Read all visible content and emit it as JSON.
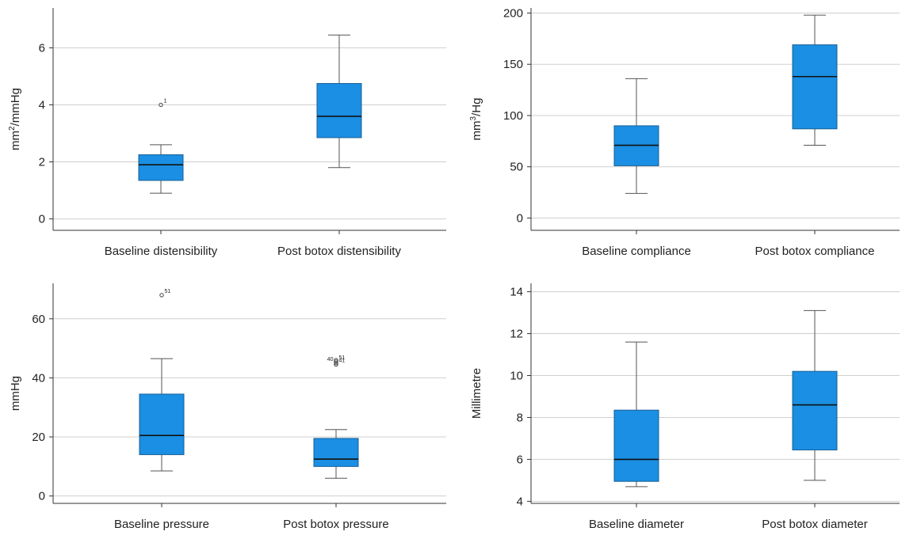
{
  "chart_data": [
    {
      "type": "box",
      "ylabel": "mm²/mmHg",
      "ylabel_main": "mm",
      "ylabel_sup": "2",
      "ylabel_tail": "/mmHg",
      "ylim": [
        -0.4,
        7.4
      ],
      "yticks": [
        0,
        2,
        4,
        6
      ],
      "ytick_labels": [
        "0",
        "2",
        "4",
        "6"
      ],
      "grid": true,
      "categories": [
        "Baseline distensibility",
        "Post botox distensibility"
      ],
      "boxes": [
        {
          "name": "Baseline distensibility",
          "min": 0.9,
          "q1": 1.35,
          "median": 1.9,
          "q3": 2.25,
          "max": 2.6,
          "outliers": [
            {
              "value": 4.0,
              "label": "1"
            }
          ]
        },
        {
          "name": "Post botox distensibility",
          "min": 1.8,
          "q1": 2.85,
          "median": 3.6,
          "q3": 4.75,
          "max": 6.45,
          "outliers": []
        }
      ]
    },
    {
      "type": "box",
      "ylabel": "mm³/Hg",
      "ylabel_main": "mm",
      "ylabel_sup": "3",
      "ylabel_tail": "/Hg",
      "ylim": [
        -12,
        205
      ],
      "yticks": [
        0,
        50,
        100,
        150,
        200
      ],
      "ytick_labels": [
        "0",
        "50",
        "100",
        "150",
        "200"
      ],
      "grid": true,
      "categories": [
        "Baseline compliance",
        "Post botox compliance"
      ],
      "boxes": [
        {
          "name": "Baseline compliance",
          "min": 24,
          "q1": 51,
          "median": 71,
          "q3": 90,
          "max": 136,
          "outliers": []
        },
        {
          "name": "Post botox compliance",
          "min": 71,
          "q1": 87,
          "median": 138,
          "q3": 169,
          "max": 198,
          "outliers": []
        }
      ]
    },
    {
      "type": "box",
      "ylabel": "mmHg",
      "ylabel_main": "mmHg",
      "ylabel_sup": "",
      "ylabel_tail": "",
      "ylim": [
        -2.5,
        72
      ],
      "yticks": [
        0,
        20,
        40,
        60
      ],
      "ytick_labels": [
        "0",
        "20",
        "40",
        "60"
      ],
      "grid": true,
      "categories": [
        "Baseline pressure",
        "Post botox pressure"
      ],
      "boxes": [
        {
          "name": "Baseline pressure",
          "min": 8.5,
          "q1": 14,
          "median": 20.5,
          "q3": 34.5,
          "max": 46.5,
          "outliers": [
            {
              "value": 68,
              "label": "51"
            }
          ]
        },
        {
          "name": "Post botox pressure",
          "min": 6,
          "q1": 10,
          "median": 12.5,
          "q3": 19.5,
          "max": 22.5,
          "outliers": [
            {
              "value": 46,
              "label": "40"
            },
            {
              "value": 45.5,
              "label": "51"
            },
            {
              "value": 45,
              "label": ""
            },
            {
              "value": 44.5,
              "label": "41"
            }
          ]
        }
      ]
    },
    {
      "type": "box",
      "ylabel": "Millimetre",
      "ylabel_main": "Millimetre",
      "ylabel_sup": "",
      "ylabel_tail": "",
      "ylim": [
        3.9,
        14.4
      ],
      "yticks": [
        4,
        6,
        8,
        10,
        12,
        14
      ],
      "ytick_labels": [
        "4",
        "6",
        "8",
        "10",
        "12",
        "14"
      ],
      "grid": true,
      "categories": [
        "Baseline diameter",
        "Post botox diameter"
      ],
      "boxes": [
        {
          "name": "Baseline diameter",
          "min": 4.7,
          "q1": 4.95,
          "median": 6.0,
          "q3": 8.35,
          "max": 11.6,
          "outliers": []
        },
        {
          "name": "Post botox diameter",
          "min": 5.0,
          "q1": 6.45,
          "median": 8.6,
          "q3": 10.2,
          "max": 13.1,
          "outliers": []
        }
      ]
    }
  ],
  "colors": {
    "box_fill": "#1a8fe3",
    "box_stroke": "#1a5f96",
    "grid": "#cfcfcf",
    "axis": "#333333",
    "whisker": "#555555"
  }
}
